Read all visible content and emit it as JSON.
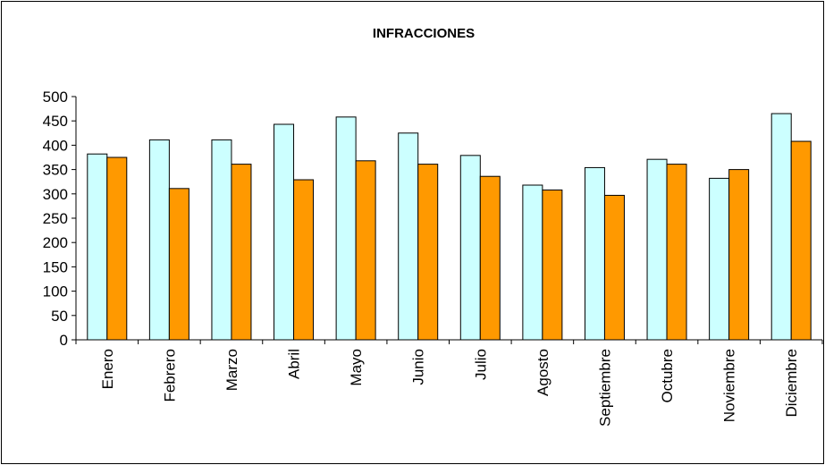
{
  "chart_data": {
    "type": "bar",
    "title": "INFRACCIONES",
    "categories": [
      "Enero",
      "Febrero",
      "Marzo",
      "Abril",
      "Mayo",
      "Junio",
      "Julio",
      "Agosto",
      "Septiembre",
      "Octubre",
      "Noviembre",
      "Diciembre"
    ],
    "series": [
      {
        "values": [
          382,
          411,
          411,
          443,
          458,
          425,
          379,
          318,
          354,
          371,
          332,
          465
        ],
        "color": "#ccffff"
      },
      {
        "values": [
          375,
          311,
          361,
          329,
          368,
          361,
          336,
          308,
          297,
          361,
          350,
          408
        ],
        "color": "#ff9900"
      }
    ],
    "ylim": [
      0,
      500
    ],
    "y_ticks": [
      0,
      50,
      100,
      150,
      200,
      250,
      300,
      350,
      400,
      450,
      500
    ],
    "grid": false,
    "legend": "none"
  }
}
